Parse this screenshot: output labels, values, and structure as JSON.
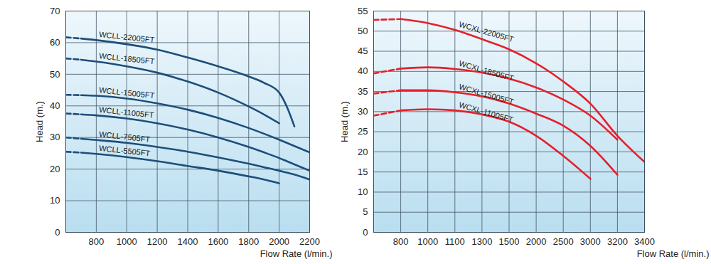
{
  "chart_data": [
    {
      "type": "line",
      "xlabel": "Flow Rate (l/min.)",
      "ylabel": "Head (m.)",
      "x": [
        600,
        700,
        800,
        1000,
        1200,
        1400,
        1600,
        1800,
        1900,
        2000,
        2050,
        2100,
        2200
      ],
      "xlim": [
        600,
        2200
      ],
      "xticks": [
        800,
        1000,
        1200,
        1400,
        1600,
        1800,
        2000,
        2200
      ],
      "ylim": [
        0,
        70
      ],
      "yticks": [
        0,
        10,
        20,
        30,
        40,
        50,
        60,
        70
      ],
      "grid": true,
      "series": [
        {
          "name": "WCLL-22005FT",
          "color": "#1d4e7a",
          "values": [
            null,
            61.3,
            60.8,
            59.5,
            57.8,
            55.3,
            52.5,
            49.3,
            47.3,
            44.2,
            39.8,
            33.5,
            null
          ],
          "dashed_values": [
            61.7,
            61.3,
            null,
            null,
            null,
            null,
            null,
            null,
            null,
            null,
            null,
            null,
            null
          ]
        },
        {
          "name": "WCLL-18505FT",
          "color": "#1d4e7a",
          "values": [
            null,
            54.6,
            54,
            52.5,
            50.5,
            47.7,
            44.2,
            39.8,
            37.3,
            34.5,
            null,
            null,
            null
          ],
          "dashed_values": [
            55,
            54.6,
            null,
            null,
            null,
            null,
            null,
            null,
            null,
            null,
            null,
            null,
            null
          ]
        },
        {
          "name": "WCLL-15005FT",
          "color": "#1d4e7a",
          "values": [
            null,
            43.4,
            43.2,
            42.3,
            40.8,
            38.8,
            36.2,
            33,
            31.2,
            29.3,
            28.3,
            27.3,
            25.3
          ],
          "dashed_values": [
            43.5,
            43.4,
            null,
            null,
            null,
            null,
            null,
            null,
            null,
            null,
            null,
            null,
            null
          ]
        },
        {
          "name": "WCLL-11005FT",
          "color": "#1d4e7a",
          "values": [
            null,
            37.3,
            37,
            36,
            34.5,
            32.5,
            30,
            27,
            25.3,
            23.5,
            22.5,
            21.5,
            19.5
          ],
          "dashed_values": [
            37.6,
            37.3,
            null,
            null,
            null,
            null,
            null,
            null,
            null,
            null,
            null,
            null,
            null
          ]
        },
        {
          "name": "WCLL-7505FT",
          "color": "#1d4e7a",
          "values": [
            null,
            29.6,
            29.2,
            28.3,
            27,
            25.5,
            23.7,
            21.7,
            20.6,
            19.5,
            18.9,
            18.3,
            16.7
          ],
          "dashed_values": [
            30,
            29.6,
            null,
            null,
            null,
            null,
            null,
            null,
            null,
            null,
            null,
            null,
            null
          ]
        },
        {
          "name": "WCLL-5505FT",
          "color": "#1d4e7a",
          "values": [
            null,
            25.2,
            24.8,
            23.8,
            22.5,
            21,
            19.5,
            17.7,
            16.7,
            15.5,
            null,
            null,
            null
          ],
          "dashed_values": [
            25.5,
            25.2,
            null,
            null,
            null,
            null,
            null,
            null,
            null,
            null,
            null,
            null,
            null
          ]
        }
      ]
    },
    {
      "type": "line",
      "xlabel": "Flow Rate (l/min.)",
      "ylabel": "Head (m.)",
      "categories": [
        null,
        "800",
        "1000",
        "1100",
        "1300",
        "1500",
        "2000",
        "2500",
        "3000",
        "3200",
        "3400"
      ],
      "ylim": [
        0,
        55
      ],
      "yticks": [
        0,
        5,
        10,
        15,
        20,
        25,
        30,
        35,
        40,
        45,
        50,
        55
      ],
      "grid": true,
      "series": [
        {
          "name": "WCXL-22005FT",
          "color": "#e5202a",
          "values": [
            null,
            53,
            52,
            50.3,
            48,
            45.5,
            42,
            37.5,
            32,
            24,
            17.5
          ],
          "dashed_values": [
            52.8,
            53,
            null,
            null,
            null,
            null,
            null,
            null,
            null,
            null,
            null
          ]
        },
        {
          "name": "WCXL-18505FT",
          "color": "#e5202a",
          "values": [
            null,
            40.7,
            41,
            40.6,
            39.7,
            38.2,
            36,
            33,
            29,
            23,
            null
          ],
          "dashed_values": [
            39.5,
            40.7,
            null,
            null,
            null,
            null,
            null,
            null,
            null,
            null,
            null
          ]
        },
        {
          "name": "WCXL-15005FT",
          "color": "#e5202a",
          "values": [
            null,
            35.3,
            35.3,
            34.8,
            33.8,
            32,
            29.5,
            26.5,
            21.5,
            14.3,
            null
          ],
          "dashed_values": [
            34.5,
            35.3,
            null,
            null,
            null,
            null,
            null,
            null,
            null,
            null,
            null
          ]
        },
        {
          "name": "WCXL-11005FT",
          "color": "#e5202a",
          "values": [
            null,
            30.3,
            30.6,
            30.3,
            29.3,
            27.5,
            24,
            19,
            13.3,
            null,
            null
          ],
          "dashed_values": [
            29,
            30.3,
            null,
            null,
            null,
            null,
            null,
            null,
            null,
            null,
            null
          ]
        }
      ]
    }
  ]
}
